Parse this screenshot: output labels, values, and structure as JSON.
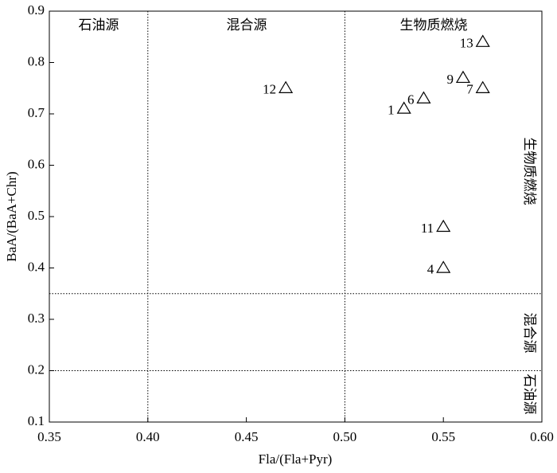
{
  "chart_data": {
    "type": "scatter",
    "x_label": "Fla/(Fla+Pyr)",
    "y_label": "BaA/(BaA+Chr)",
    "x": [
      0.47,
      0.53,
      0.54,
      0.56,
      0.57,
      0.57,
      0.55,
      0.55
    ],
    "values": [
      0.75,
      0.71,
      0.73,
      0.77,
      0.75,
      0.84,
      0.48,
      0.4
    ],
    "labels": [
      "12",
      "1",
      "6",
      "9",
      "7",
      "13",
      "11",
      "4"
    ],
    "color": "#000000",
    "marker": "open-triangle",
    "xlim": [
      0.35,
      0.6
    ],
    "xticks": [
      0.35,
      {
        "value": 0.4,
        "label": "0.40"
      },
      0.45,
      {
        "value": 0.5,
        "label": "0.50"
      },
      0.55,
      {
        "value": 0.6,
        "label": "0.60"
      }
    ],
    "ylim": [
      0.1,
      0.9
    ],
    "yticks": [
      0.1,
      0.2,
      0.3,
      0.4,
      0.5,
      0.6,
      0.7,
      0.8,
      0.9
    ],
    "vlines": [
      0.4,
      0.5
    ],
    "hlines": [
      0.35,
      0.2
    ],
    "top_regions": [
      "石油源",
      "混合源",
      "生物质燃烧"
    ],
    "right_regions": [
      "生物质燃烧",
      "混合源",
      "石油源"
    ]
  }
}
